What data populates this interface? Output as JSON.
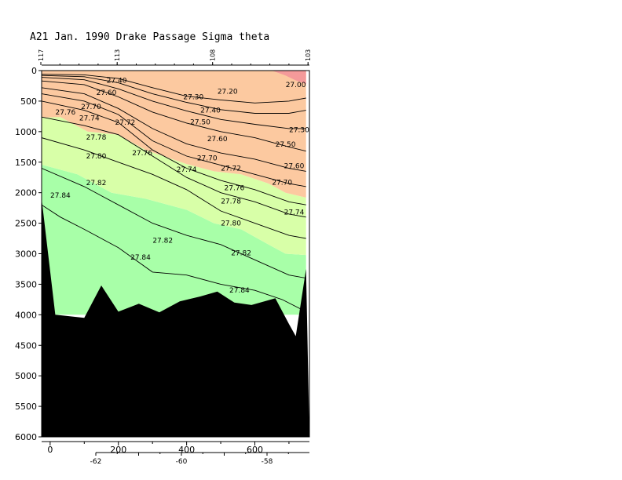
{
  "chart_data": {
    "type": "contour-section",
    "title": "A21 Jan. 1990 Drake Passage Sigma theta",
    "bottom_axis": {
      "ticks": [
        0,
        200,
        400,
        600
      ],
      "range": [
        -25,
        760
      ]
    },
    "lower_axis": {
      "ticks": [
        "-62",
        "-60",
        "-58"
      ],
      "values": [
        -62,
        -60,
        -58
      ]
    },
    "top_axis": {
      "ticks": [
        "117",
        "113",
        "108",
        "103"
      ],
      "values": [
        117,
        113,
        108,
        103
      ]
    },
    "y_axis": {
      "ticks": [
        0,
        500,
        1000,
        1500,
        2000,
        2500,
        3000,
        3500,
        4000,
        4500,
        5000,
        5500,
        6000
      ],
      "range": [
        0,
        6000
      ],
      "inverted": true
    },
    "fill_colors": {
      "orange": "#fcc9a0",
      "light_green": "#d8ffa8",
      "green": "#a8ffa8",
      "red": "#f49a9a",
      "seafloor": "#000000"
    },
    "regions": [
      {
        "name": "sigma-gt-27.82",
        "color_key": "green",
        "bounds": [
          [
            -25,
            2160
          ],
          [
            -25,
            1540
          ],
          [
            80,
            1700
          ],
          [
            180,
            2000
          ],
          [
            280,
            2100
          ],
          [
            400,
            2280
          ],
          [
            480,
            2500
          ],
          [
            560,
            2600
          ],
          [
            640,
            2850
          ],
          [
            690,
            3000
          ],
          [
            750,
            3020
          ],
          [
            750,
            4000
          ],
          [
            -25,
            4000
          ]
        ]
      },
      {
        "name": "sigma-27.50-27.82",
        "color_key": "light_green",
        "bounds": [
          [
            -25,
            770
          ],
          [
            30,
            760
          ],
          [
            110,
            1000
          ],
          [
            200,
            1050
          ],
          [
            280,
            1300
          ],
          [
            400,
            1530
          ],
          [
            480,
            1650
          ],
          [
            560,
            1700
          ],
          [
            640,
            1850
          ],
          [
            690,
            2000
          ],
          [
            750,
            2080
          ],
          [
            750,
            3020
          ],
          [
            690,
            3000
          ],
          [
            640,
            2850
          ],
          [
            560,
            2600
          ],
          [
            480,
            2500
          ],
          [
            400,
            2280
          ],
          [
            280,
            2100
          ],
          [
            180,
            2000
          ],
          [
            80,
            1700
          ],
          [
            -25,
            1540
          ]
        ]
      },
      {
        "name": "sigma-lt-27.50",
        "color_key": "orange",
        "bounds": [
          [
            -25,
            0
          ],
          [
            750,
            0
          ],
          [
            750,
            2080
          ],
          [
            690,
            2000
          ],
          [
            640,
            1850
          ],
          [
            560,
            1700
          ],
          [
            480,
            1650
          ],
          [
            400,
            1530
          ],
          [
            280,
            1300
          ],
          [
            200,
            1050
          ],
          [
            110,
            1000
          ],
          [
            30,
            760
          ],
          [
            -25,
            770
          ]
        ]
      },
      {
        "name": "surface-lens",
        "color_key": "red",
        "bounds": [
          [
            650,
            0
          ],
          [
            750,
            0
          ],
          [
            750,
            220
          ],
          [
            720,
            160
          ],
          [
            690,
            80
          ]
        ]
      }
    ],
    "contours": [
      {
        "level": "27.30",
        "points": [
          [
            -25,
            60
          ],
          [
            100,
            70
          ],
          [
            200,
            130
          ],
          [
            300,
            280
          ],
          [
            400,
            420
          ],
          [
            500,
            480
          ],
          [
            600,
            530
          ],
          [
            700,
            500
          ],
          [
            750,
            450
          ]
        ]
      },
      {
        "level": "27.40",
        "points": [
          [
            -25,
            80
          ],
          [
            100,
            100
          ],
          [
            200,
            200
          ],
          [
            300,
            380
          ],
          [
            400,
            520
          ],
          [
            500,
            640
          ],
          [
            600,
            700
          ],
          [
            700,
            700
          ],
          [
            750,
            650
          ]
        ]
      },
      {
        "level": "27.50",
        "points": [
          [
            -25,
            110
          ],
          [
            100,
            150
          ],
          [
            200,
            300
          ],
          [
            300,
            500
          ],
          [
            400,
            660
          ],
          [
            500,
            800
          ],
          [
            600,
            880
          ],
          [
            700,
            950
          ],
          [
            750,
            950
          ]
        ]
      },
      {
        "level": "27.60",
        "points": [
          [
            -25,
            170
          ],
          [
            100,
            230
          ],
          [
            200,
            430
          ],
          [
            300,
            680
          ],
          [
            400,
            860
          ],
          [
            500,
            1000
          ],
          [
            600,
            1100
          ],
          [
            700,
            1250
          ],
          [
            750,
            1320
          ]
        ]
      },
      {
        "level": "27.70",
        "points": [
          [
            -25,
            280
          ],
          [
            100,
            380
          ],
          [
            200,
            620
          ],
          [
            300,
            950
          ],
          [
            400,
            1200
          ],
          [
            500,
            1350
          ],
          [
            600,
            1450
          ],
          [
            700,
            1600
          ],
          [
            750,
            1650
          ]
        ]
      },
      {
        "level": "27.74",
        "points": [
          [
            -25,
            380
          ],
          [
            100,
            500
          ],
          [
            200,
            720
          ],
          [
            300,
            1150
          ],
          [
            400,
            1400
          ],
          [
            500,
            1550
          ],
          [
            600,
            1700
          ],
          [
            700,
            1850
          ],
          [
            750,
            1900
          ]
        ]
      },
      {
        "level": "27.76",
        "points": [
          [
            -25,
            500
          ],
          [
            100,
            650
          ],
          [
            200,
            850
          ],
          [
            300,
            1300
          ],
          [
            400,
            1600
          ],
          [
            500,
            1800
          ],
          [
            600,
            1950
          ],
          [
            700,
            2150
          ],
          [
            750,
            2200
          ]
        ]
      },
      {
        "level": "27.78",
        "points": [
          [
            -25,
            760
          ],
          [
            100,
            900
          ],
          [
            200,
            1050
          ],
          [
            300,
            1400
          ],
          [
            400,
            1750
          ],
          [
            500,
            2000
          ],
          [
            600,
            2150
          ],
          [
            700,
            2350
          ],
          [
            750,
            2400
          ]
        ]
      },
      {
        "level": "27.80",
        "points": [
          [
            -25,
            1100
          ],
          [
            100,
            1300
          ],
          [
            200,
            1500
          ],
          [
            300,
            1700
          ],
          [
            400,
            1950
          ],
          [
            500,
            2300
          ],
          [
            600,
            2500
          ],
          [
            700,
            2700
          ],
          [
            750,
            2750
          ]
        ]
      },
      {
        "level": "27.82",
        "points": [
          [
            -25,
            1600
          ],
          [
            100,
            1900
          ],
          [
            200,
            2200
          ],
          [
            300,
            2500
          ],
          [
            400,
            2700
          ],
          [
            500,
            2850
          ],
          [
            600,
            3100
          ],
          [
            700,
            3350
          ],
          [
            750,
            3400
          ]
        ]
      },
      {
        "level": "27.84",
        "points": [
          [
            -25,
            2200
          ],
          [
            30,
            2400
          ],
          [
            100,
            2600
          ],
          [
            200,
            2900
          ],
          [
            300,
            3300
          ],
          [
            400,
            3350
          ],
          [
            500,
            3500
          ],
          [
            600,
            3600
          ],
          [
            680,
            3750
          ],
          [
            750,
            3950
          ]
        ]
      }
    ],
    "bottom_profile": [
      [
        -25,
        2100
      ],
      [
        15,
        4000
      ],
      [
        100,
        4050
      ],
      [
        150,
        3520
      ],
      [
        200,
        3950
      ],
      [
        260,
        3820
      ],
      [
        320,
        3960
      ],
      [
        380,
        3780
      ],
      [
        440,
        3700
      ],
      [
        490,
        3620
      ],
      [
        540,
        3800
      ],
      [
        590,
        3840
      ],
      [
        660,
        3730
      ],
      [
        700,
        4150
      ],
      [
        720,
        4350
      ],
      [
        750,
        3250
      ]
    ],
    "contour_labels": [
      {
        "text": "27.40",
        "x": 195,
        "y": 160
      },
      {
        "text": "27.60",
        "x": 165,
        "y": 360
      },
      {
        "text": "27.76",
        "x": 45,
        "y": 680
      },
      {
        "text": "27.70",
        "x": 120,
        "y": 590
      },
      {
        "text": "27.74",
        "x": 115,
        "y": 780
      },
      {
        "text": "27.72",
        "x": 220,
        "y": 850
      },
      {
        "text": "27.78",
        "x": 135,
        "y": 1090
      },
      {
        "text": "27.80",
        "x": 135,
        "y": 1400
      },
      {
        "text": "27.82",
        "x": 135,
        "y": 1840
      },
      {
        "text": "27.84",
        "x": 30,
        "y": 2040
      },
      {
        "text": "27.30",
        "x": 420,
        "y": 430
      },
      {
        "text": "27.20",
        "x": 520,
        "y": 340
      },
      {
        "text": "27.40",
        "x": 470,
        "y": 650
      },
      {
        "text": "27.50",
        "x": 440,
        "y": 840
      },
      {
        "text": "27.60",
        "x": 490,
        "y": 1120
      },
      {
        "text": "27.76",
        "x": 270,
        "y": 1350
      },
      {
        "text": "27.70",
        "x": 460,
        "y": 1430
      },
      {
        "text": "27.74",
        "x": 400,
        "y": 1620
      },
      {
        "text": "27.72",
        "x": 530,
        "y": 1600
      },
      {
        "text": "27.76",
        "x": 540,
        "y": 1920
      },
      {
        "text": "27.78",
        "x": 530,
        "y": 2140
      },
      {
        "text": "27.80",
        "x": 530,
        "y": 2500
      },
      {
        "text": "27.82",
        "x": 330,
        "y": 2780
      },
      {
        "text": "27.82",
        "x": 560,
        "y": 2990
      },
      {
        "text": "27.84",
        "x": 265,
        "y": 3060
      },
      {
        "text": "27.84",
        "x": 555,
        "y": 3600
      },
      {
        "text": "27.00",
        "x": 720,
        "y": 230
      },
      {
        "text": "27.30",
        "x": 730,
        "y": 970
      },
      {
        "text": "27.50",
        "x": 690,
        "y": 1210
      },
      {
        "text": "27.60",
        "x": 715,
        "y": 1560
      },
      {
        "text": "27.70",
        "x": 680,
        "y": 1830
      },
      {
        "text": "27.74",
        "x": 715,
        "y": 2320
      }
    ]
  }
}
